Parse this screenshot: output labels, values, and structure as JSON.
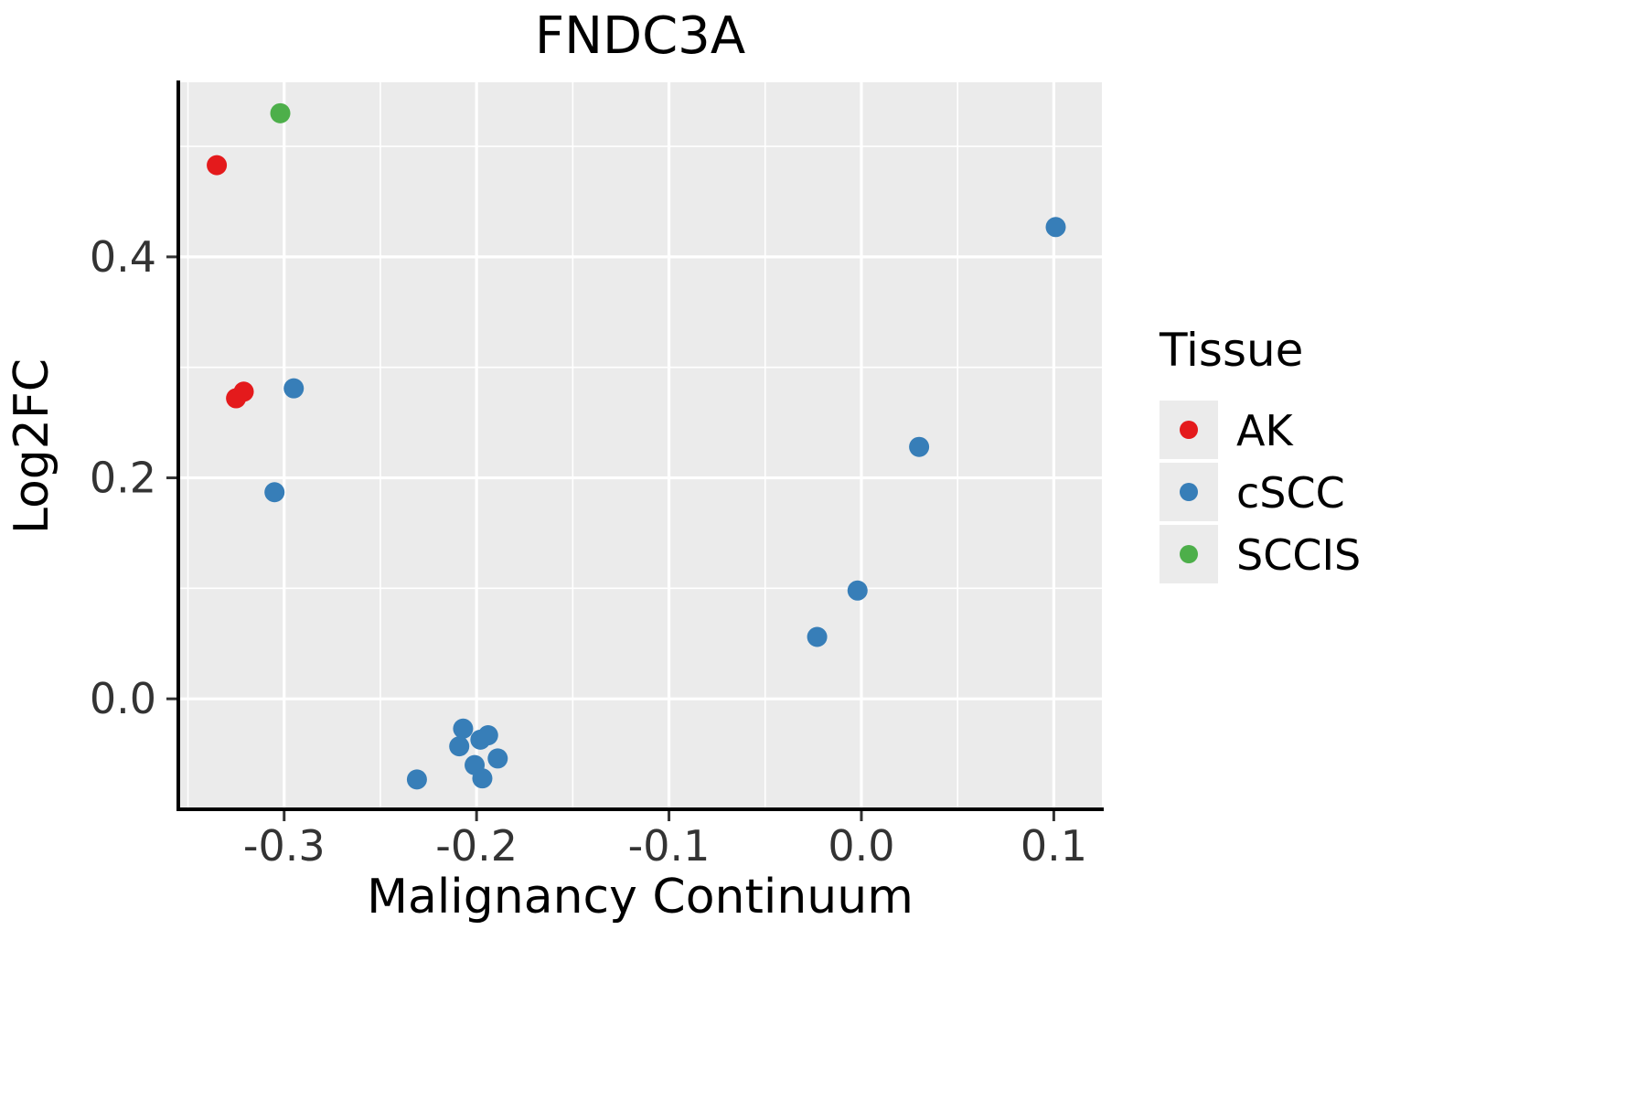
{
  "chart_data": {
    "type": "scatter",
    "title": "FNDC3A",
    "xlabel": "Malignancy Continuum",
    "ylabel": "Log2FC",
    "xlim": [
      -0.355,
      0.125
    ],
    "ylim": [
      -0.1,
      0.558
    ],
    "xticks": [
      -0.3,
      -0.2,
      -0.1,
      0.0,
      0.1
    ],
    "xtick_labels": [
      "-0.3",
      "-0.2",
      "-0.1",
      "0.0",
      "0.1"
    ],
    "yticks": [
      0.0,
      0.2,
      0.4
    ],
    "ytick_labels": [
      "0.0",
      "0.2",
      "0.4"
    ],
    "x_minor": [
      -0.35,
      -0.25,
      -0.15,
      -0.05,
      0.05
    ],
    "y_minor": [
      0.1,
      0.3,
      0.5
    ],
    "grid": "major+minor white gridlines on gray panel",
    "panel_color": "#EBEBEB",
    "grid_color": "#FFFFFF",
    "axis_color": "#000000",
    "tick_text_color": "#333333",
    "legend": {
      "title": "Tissue",
      "position": "right",
      "key_background": "#EBEBEB",
      "items": [
        {
          "label": "AK",
          "color": "#E41A1C"
        },
        {
          "label": "cSCC",
          "color": "#377EB8"
        },
        {
          "label": "SCCIS",
          "color": "#4DAF4A"
        }
      ]
    },
    "series": [
      {
        "name": "AK",
        "color": "#E41A1C",
        "points": [
          [
            -0.335,
            0.483
          ],
          [
            -0.325,
            0.272
          ],
          [
            -0.321,
            0.278
          ]
        ]
      },
      {
        "name": "cSCC",
        "color": "#377EB8",
        "points": [
          [
            -0.295,
            0.281
          ],
          [
            -0.305,
            0.187
          ],
          [
            -0.231,
            -0.073
          ],
          [
            -0.209,
            -0.043
          ],
          [
            -0.207,
            -0.027
          ],
          [
            -0.201,
            -0.06
          ],
          [
            -0.198,
            -0.037
          ],
          [
            -0.194,
            -0.033
          ],
          [
            -0.197,
            -0.072
          ],
          [
            -0.189,
            -0.054
          ],
          [
            -0.023,
            0.056
          ],
          [
            -0.002,
            0.098
          ],
          [
            0.03,
            0.228
          ],
          [
            0.101,
            0.427
          ]
        ]
      },
      {
        "name": "SCCIS",
        "color": "#4DAF4A",
        "points": [
          [
            -0.302,
            0.53
          ]
        ]
      }
    ]
  }
}
